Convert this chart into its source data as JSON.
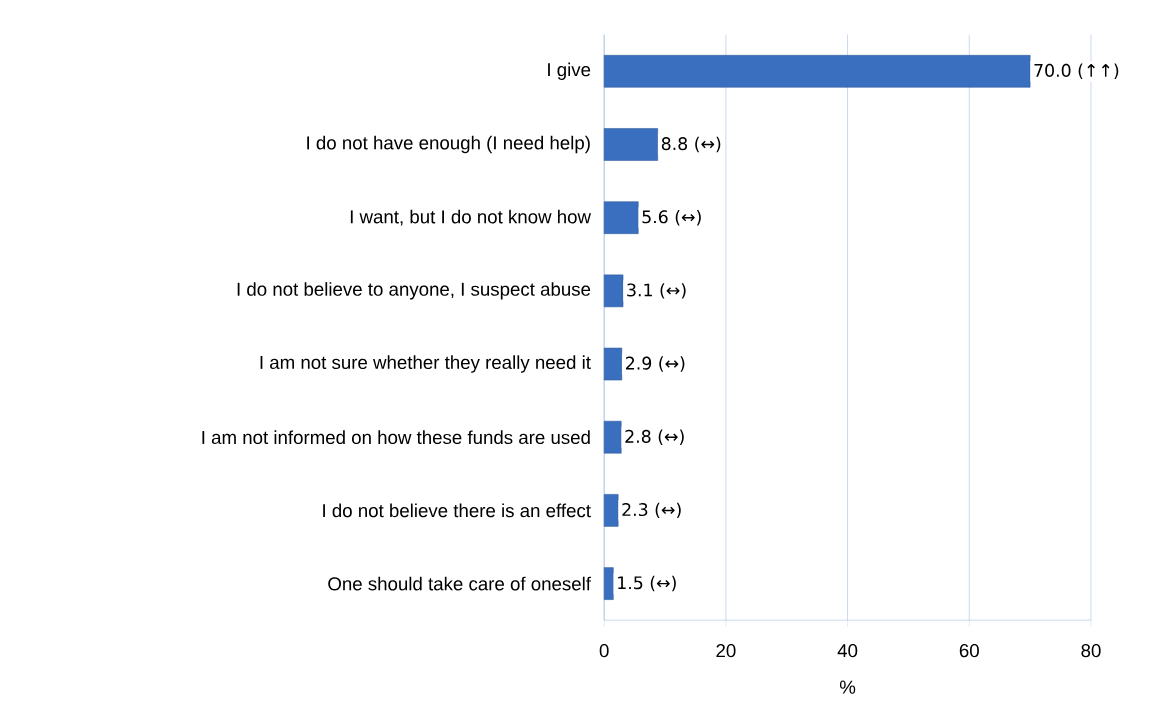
{
  "chart_data": {
    "type": "bar",
    "orientation": "horizontal",
    "xlabel": "%",
    "categories": [
      "I give",
      "I do not have enough (I need help)",
      "I want, but I do not know how",
      "I do not believe to anyone, I suspect abuse",
      "I am not sure whether they really need it",
      "I am not informed on how these funds are used",
      "I do not believe there is an effect",
      "One should take care of oneself"
    ],
    "values": [
      70.0,
      8.8,
      5.6,
      3.1,
      2.9,
      2.8,
      2.3,
      1.5
    ],
    "value_labels": [
      "70.0 (↑↑)",
      "8.8 (↔)",
      "5.6 (↔)",
      "3.1 (↔)",
      "2.9 (↔)",
      "2.8 (↔)",
      "2.3 (↔)",
      "1.5 (↔)"
    ],
    "color": "#3a6fbf",
    "xlim": [
      0,
      80
    ],
    "xticks": [
      0,
      20,
      40,
      60,
      80
    ],
    "grid": "x"
  }
}
